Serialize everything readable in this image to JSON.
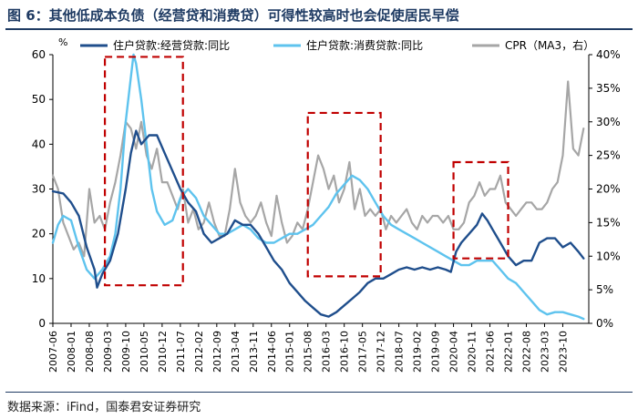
{
  "figure": {
    "title": "图 6：其他低成本负债（经营贷和消费贷）可得性较高时也会促使居民早偿",
    "source": "数据来源：iFind，国泰君安证券研究"
  },
  "chart_data": {
    "type": "line",
    "title": "其他低成本负债（经营贷和消费贷）可得性较高时也会促使居民早偿",
    "left_axis_unit": "%",
    "ylim_left": [
      0,
      60
    ],
    "yticks_left": [
      0,
      10,
      20,
      30,
      40,
      50,
      60
    ],
    "ylim_right": [
      0,
      40
    ],
    "yticks_right": [
      "0%",
      "5%",
      "10%",
      "15%",
      "20%",
      "25%",
      "30%",
      "35%",
      "40%"
    ],
    "x_range": [
      2007.4167,
      2024.5833
    ],
    "x_tick_labels": [
      "2007-06",
      "2008-01",
      "2008-08",
      "2009-03",
      "2009-10",
      "2010-05",
      "2010-12",
      "2011-07",
      "2012-02",
      "2012-09",
      "2013-04",
      "2013-11",
      "2014-06",
      "2015-01",
      "2015-08",
      "2016-03",
      "2016-10",
      "2017-05",
      "2017-12",
      "2018-07",
      "2019-02",
      "2019-09",
      "2020-04",
      "2020-11",
      "2021-06",
      "2022-01",
      "2022-08",
      "2023-03",
      "2023-10"
    ],
    "series": [
      {
        "name": "住户贷款:经营贷款:同比",
        "color": "#1f4e8c",
        "axis": "left",
        "x": [
          2007.4167,
          2007.75,
          2008.0,
          2008.25,
          2008.5,
          2008.75,
          2008.8333,
          2009.0,
          2009.25,
          2009.5,
          2009.75,
          2009.9167,
          2010.0833,
          2010.25,
          2010.5,
          2010.75,
          2011.0,
          2011.25,
          2011.5,
          2011.75,
          2012.0,
          2012.25,
          2012.5,
          2012.75,
          2013.0,
          2013.25,
          2013.5,
          2013.75,
          2014.0,
          2014.25,
          2014.5,
          2014.75,
          2015.0,
          2015.25,
          2015.5,
          2015.75,
          2016.0,
          2016.25,
          2016.5,
          2016.75,
          2017.0,
          2017.25,
          2017.5,
          2017.75,
          2018.0,
          2018.25,
          2018.5,
          2018.75,
          2019.0,
          2019.25,
          2019.5,
          2019.75,
          2020.0,
          2020.1667,
          2020.3333,
          2020.5,
          2020.75,
          2021.0,
          2021.1667,
          2021.3333,
          2021.5,
          2021.75,
          2022.0,
          2022.25,
          2022.5,
          2022.75,
          2023.0,
          2023.25,
          2023.5,
          2023.75,
          2024.0,
          2024.25,
          2024.4167
        ],
        "values": [
          29.5,
          29,
          27,
          24,
          17,
          12,
          8,
          11,
          14,
          20,
          30,
          38,
          43,
          40,
          42,
          42,
          38,
          34,
          30,
          27,
          25,
          20,
          18,
          19,
          20,
          23,
          22,
          22,
          20,
          17,
          14,
          12,
          9,
          7,
          5,
          3.5,
          2,
          1.5,
          2.5,
          4,
          5.5,
          7,
          9,
          10,
          10,
          11,
          12,
          12.5,
          12,
          12.5,
          12,
          12.5,
          12,
          11.5,
          16,
          18,
          20,
          22,
          24.5,
          23,
          21,
          18,
          15,
          13,
          14,
          14,
          18,
          19,
          19,
          17,
          18,
          16,
          14.5
        ]
      },
      {
        "name": "住户贷款:消费贷款:同比",
        "color": "#5ec3ee",
        "axis": "left",
        "x": [
          2007.4167,
          2007.5833,
          2007.75,
          2008.0,
          2008.25,
          2008.5,
          2008.75,
          2009.0,
          2009.25,
          2009.4167,
          2009.5833,
          2009.75,
          2009.9167,
          2010.0,
          2010.0833,
          2010.25,
          2010.4167,
          2010.5833,
          2010.75,
          2011.0,
          2011.25,
          2011.5,
          2011.75,
          2012.0,
          2012.25,
          2012.5,
          2012.75,
          2013.0,
          2013.25,
          2013.5,
          2013.75,
          2014.0,
          2014.25,
          2014.5,
          2014.75,
          2015.0,
          2015.25,
          2015.5,
          2015.75,
          2016.0,
          2016.25,
          2016.5,
          2016.75,
          2017.0,
          2017.25,
          2017.5,
          2017.75,
          2018.0,
          2018.25,
          2018.5,
          2018.75,
          2019.0,
          2019.25,
          2019.5,
          2019.75,
          2020.0,
          2020.25,
          2020.5,
          2020.75,
          2021.0,
          2021.25,
          2021.5,
          2021.75,
          2022.0,
          2022.25,
          2022.5,
          2022.75,
          2023.0,
          2023.25,
          2023.5,
          2023.75,
          2024.0,
          2024.25,
          2024.4167
        ],
        "values": [
          18,
          22,
          24,
          23,
          17,
          12,
          10,
          12,
          15,
          20,
          30,
          45,
          55,
          60,
          58,
          50,
          40,
          30,
          25,
          22,
          23,
          28,
          30,
          28,
          24,
          22,
          20,
          20,
          21,
          22,
          21,
          19,
          18,
          18,
          19,
          20,
          20,
          21,
          22,
          24,
          26,
          29,
          31,
          33,
          32,
          30,
          27,
          24,
          22,
          21,
          20,
          19,
          18,
          17,
          16,
          15,
          14,
          13,
          13,
          14,
          14,
          14,
          12,
          10,
          9,
          7,
          5,
          3,
          2,
          2.5,
          2.5,
          2,
          1.5,
          1
        ]
      },
      {
        "name": "CPR（MA3，右）",
        "color": "#a6a6a6",
        "axis": "right",
        "x": [
          2007.4167,
          2007.5833,
          2007.75,
          2007.9167,
          2008.0833,
          2008.25,
          2008.4167,
          2008.5833,
          2008.75,
          2008.9167,
          2009.0833,
          2009.25,
          2009.4167,
          2009.5833,
          2009.75,
          2009.9167,
          2010.0833,
          2010.25,
          2010.4167,
          2010.5833,
          2010.75,
          2010.9167,
          2011.0833,
          2011.25,
          2011.4167,
          2011.5833,
          2011.75,
          2011.9167,
          2012.0833,
          2012.25,
          2012.4167,
          2012.5833,
          2012.75,
          2012.9167,
          2013.0833,
          2013.25,
          2013.4167,
          2013.5833,
          2013.75,
          2013.9167,
          2014.0833,
          2014.25,
          2014.4167,
          2014.5833,
          2014.75,
          2014.9167,
          2015.0833,
          2015.25,
          2015.4167,
          2015.5833,
          2015.75,
          2015.9167,
          2016.0833,
          2016.25,
          2016.4167,
          2016.5833,
          2016.75,
          2016.9167,
          2017.0833,
          2017.25,
          2017.4167,
          2017.5833,
          2017.75,
          2017.9167,
          2018.0833,
          2018.25,
          2018.4167,
          2018.5833,
          2018.75,
          2018.9167,
          2019.0833,
          2019.25,
          2019.4167,
          2019.5833,
          2019.75,
          2019.9167,
          2020.0833,
          2020.25,
          2020.4167,
          2020.5833,
          2020.75,
          2020.9167,
          2021.0833,
          2021.25,
          2021.4167,
          2021.5833,
          2021.75,
          2021.9167,
          2022.0833,
          2022.25,
          2022.4167,
          2022.5833,
          2022.75,
          2022.9167,
          2023.0833,
          2023.25,
          2023.4167,
          2023.5833,
          2023.75,
          2023.9167,
          2024.0833,
          2024.25,
          2024.4167
        ],
        "values": [
          22,
          20,
          15,
          13,
          11,
          12,
          10,
          20,
          15,
          16,
          14,
          18,
          21,
          25,
          30,
          29,
          26,
          30,
          25,
          23,
          26,
          21,
          21,
          19,
          17,
          20,
          15,
          17,
          14,
          15,
          18,
          15,
          13,
          13,
          17,
          23,
          18,
          16,
          15,
          16,
          18,
          15,
          13,
          19,
          15,
          12,
          13,
          15,
          14,
          17,
          21,
          25,
          23,
          20,
          22,
          18,
          20,
          24,
          17,
          20,
          16,
          17,
          16,
          17,
          14,
          16,
          15,
          16,
          17,
          15,
          14,
          16,
          15,
          16,
          16,
          15,
          16,
          14,
          14,
          15,
          18,
          19,
          21,
          19,
          20,
          20,
          22,
          18,
          17,
          16,
          17,
          18,
          18,
          17,
          17,
          18,
          20,
          21,
          25,
          36,
          26,
          25,
          29
        ]
      }
    ],
    "annotations": [
      {
        "type": "dashed-box",
        "x": [
          2009.0833,
          2011.5833
        ],
        "y": [
          8.5,
          59.5
        ],
        "color": "#c00000"
      },
      {
        "type": "dashed-box",
        "x": [
          2015.5833,
          2017.9167
        ],
        "y": [
          10.5,
          47
        ],
        "color": "#c00000"
      },
      {
        "type": "dashed-box",
        "x": [
          2020.25,
          2022.0
        ],
        "y": [
          14.5,
          36
        ],
        "color": "#c00000"
      }
    ]
  }
}
